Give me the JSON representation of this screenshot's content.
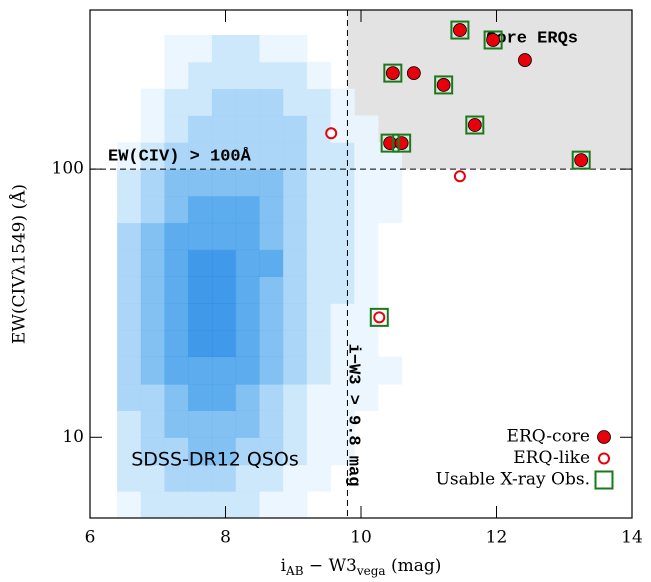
{
  "chart_data": {
    "type": "scatter",
    "x_label_parts": [
      "i",
      "AB",
      " − W3",
      "vega",
      " (mag)"
    ],
    "y_label": "EW(CIVλ1549) (Å)",
    "xlim": [
      6,
      14
    ],
    "xticks": [
      6,
      8,
      10,
      12,
      14
    ],
    "ylim": [
      5,
      392
    ],
    "yticks": [
      10,
      100
    ],
    "y_log": true,
    "thresholds": {
      "x": 9.8,
      "y": 100
    },
    "region_color": "#e3e3e3",
    "annotations": {
      "ew_cut": "EW(CIV) > 100Å",
      "color_cut": "i−W3 > 9.8 mag",
      "core": "Core ERQs",
      "sample": "SDSS-DR12 QSOs"
    },
    "density": {
      "xedges": [
        6.4,
        6.75,
        7.1,
        7.45,
        7.8,
        8.15,
        8.5,
        8.85,
        9.2,
        9.55,
        9.9,
        10.25,
        10.6
      ],
      "yedges": [
        5.0,
        6.3,
        7.9,
        10,
        12.6,
        15.8,
        20,
        25.1,
        31.6,
        39.8,
        50.1,
        63.1,
        79.4,
        100,
        125.9,
        158.5,
        199.5,
        251.2,
        316.2
      ],
      "colors": [
        "#eaf5fe",
        "#c8e5fb",
        "#a2d2f7",
        "#74baf0",
        "#4aa3ec",
        "#2c8fe7"
      ],
      "counts": [
        [
          1,
          2,
          2,
          2,
          2,
          2,
          1,
          1,
          0,
          0,
          0,
          0
        ],
        [
          2,
          2,
          3,
          3,
          3,
          2,
          2,
          1,
          1,
          0,
          0,
          0
        ],
        [
          2,
          3,
          3,
          4,
          4,
          3,
          3,
          2,
          1,
          1,
          0,
          0
        ],
        [
          2,
          3,
          4,
          4,
          4,
          4,
          3,
          2,
          1,
          1,
          0,
          0
        ],
        [
          3,
          3,
          4,
          5,
          5,
          4,
          3,
          2,
          1,
          1,
          1,
          0
        ],
        [
          3,
          4,
          5,
          5,
          5,
          5,
          4,
          3,
          2,
          1,
          1,
          1
        ],
        [
          3,
          4,
          5,
          6,
          6,
          5,
          4,
          3,
          2,
          1,
          1,
          0
        ],
        [
          3,
          4,
          5,
          6,
          6,
          5,
          4,
          3,
          2,
          1,
          1,
          0
        ],
        [
          3,
          4,
          5,
          6,
          6,
          5,
          4,
          3,
          2,
          2,
          1,
          0
        ],
        [
          3,
          4,
          5,
          6,
          6,
          5,
          5,
          3,
          2,
          2,
          1,
          0
        ],
        [
          3,
          4,
          5,
          5,
          5,
          5,
          4,
          3,
          2,
          2,
          1,
          0
        ],
        [
          2,
          3,
          4,
          5,
          5,
          5,
          4,
          3,
          2,
          2,
          1,
          1
        ],
        [
          2,
          3,
          4,
          4,
          4,
          4,
          4,
          3,
          2,
          2,
          1,
          1
        ],
        [
          1,
          2,
          3,
          3,
          3,
          3,
          3,
          3,
          2,
          2,
          1,
          1
        ],
        [
          0,
          1,
          2,
          3,
          3,
          3,
          3,
          3,
          2,
          1,
          1,
          0
        ],
        [
          0,
          1,
          2,
          2,
          3,
          3,
          3,
          2,
          2,
          1,
          0,
          0
        ],
        [
          0,
          0,
          1,
          2,
          2,
          2,
          2,
          2,
          1,
          0,
          0,
          0
        ],
        [
          0,
          0,
          1,
          1,
          2,
          2,
          1,
          1,
          0,
          0,
          0,
          0
        ]
      ]
    },
    "series": [
      {
        "name": "ERQ-core",
        "color": "#e8000b",
        "marker": "filled",
        "x": [
          11.46,
          11.95,
          12.42,
          10.47,
          10.78,
          11.22,
          11.68,
          10.43,
          10.6,
          13.25
        ],
        "y": [
          330,
          303,
          255,
          228,
          228,
          206,
          146,
          125,
          125,
          108
        ]
      },
      {
        "name": "ERQ-like",
        "color": "#e8000b",
        "marker": "open",
        "x": [
          9.56,
          11.46,
          10.27
        ],
        "y": [
          136,
          94,
          28
        ]
      },
      {
        "name": "Usable X-ray Obs.",
        "color": "#1a7a1a",
        "marker": "square",
        "x": [
          11.46,
          11.95,
          10.47,
          11.22,
          11.68,
          10.43,
          10.6,
          13.25,
          10.27
        ],
        "y": [
          330,
          303,
          228,
          206,
          146,
          125,
          125,
          108,
          28
        ]
      }
    ]
  }
}
